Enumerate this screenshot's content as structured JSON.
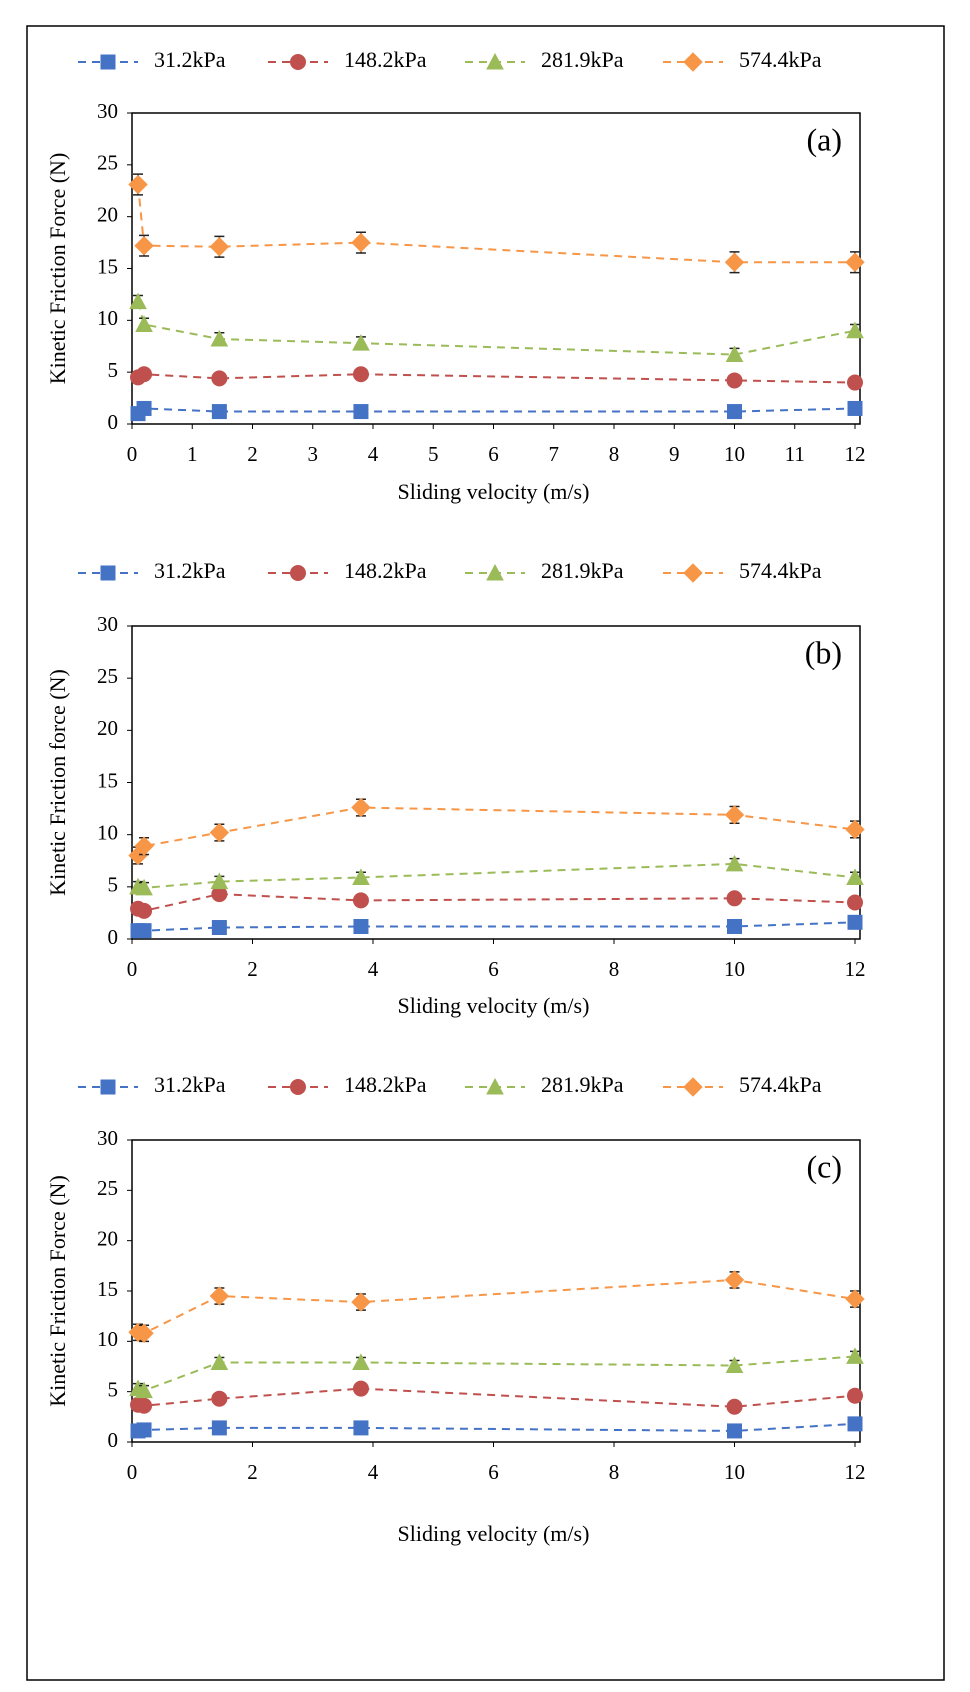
{
  "chart_data": [
    {
      "type": "line",
      "annotation": "(a)",
      "x_label": "Sliding velocity (m/s)",
      "y_label": "Kinetic Friction Force (N)",
      "x": [
        0.1,
        0.2,
        1.45,
        3.8,
        10,
        12
      ],
      "xlim": [
        0,
        12
      ],
      "xticks": [
        0,
        1,
        2,
        3,
        4,
        5,
        6,
        7,
        8,
        9,
        10,
        11,
        12
      ],
      "ylim": [
        0,
        30
      ],
      "yticks": [
        0,
        5,
        10,
        15,
        20,
        25,
        30
      ],
      "series": [
        {
          "name": "31.2kPa",
          "color": "#4472c4",
          "marker": "square",
          "values": [
            1.0,
            1.5,
            1.2,
            1.2,
            1.2,
            1.5
          ],
          "errors": [
            0.3,
            0.3,
            0.3,
            0.3,
            0.3,
            0.3
          ]
        },
        {
          "name": "148.2kPa",
          "color": "#c0504d",
          "marker": "circle",
          "values": [
            4.5,
            4.8,
            4.4,
            4.8,
            4.2,
            4.0
          ],
          "errors": [
            0.4,
            0.4,
            0.4,
            0.4,
            0.4,
            0.4
          ]
        },
        {
          "name": "281.9kPa",
          "color": "#9bbb59",
          "marker": "triangle",
          "values": [
            11.8,
            9.6,
            8.2,
            7.8,
            6.7,
            9.0
          ],
          "errors": [
            0.6,
            0.6,
            0.6,
            0.6,
            0.6,
            0.6
          ]
        },
        {
          "name": "574.4kPa",
          "color": "#f79646",
          "marker": "diamond",
          "values": [
            23.1,
            17.2,
            17.1,
            17.5,
            15.6,
            15.6
          ],
          "errors": [
            1.0,
            1.0,
            1.0,
            1.0,
            1.0,
            1.0
          ]
        }
      ]
    },
    {
      "type": "line",
      "annotation": "(b)",
      "x_label": "Sliding velocity (m/s)",
      "y_label": "Kinetic Friction force (N)",
      "x": [
        0.1,
        0.2,
        1.45,
        3.8,
        10,
        12
      ],
      "xlim": [
        0,
        12
      ],
      "xticks": [
        0,
        2,
        4,
        6,
        8,
        10,
        12
      ],
      "ylim": [
        0,
        30
      ],
      "yticks": [
        0,
        5,
        10,
        15,
        20,
        25,
        30
      ],
      "series": [
        {
          "name": "31.2kPa",
          "color": "#4472c4",
          "marker": "square",
          "values": [
            0.8,
            0.8,
            1.1,
            1.2,
            1.2,
            1.6
          ],
          "errors": [
            0.3,
            0.3,
            0.3,
            0.3,
            0.3,
            0.3
          ]
        },
        {
          "name": "148.2kPa",
          "color": "#c0504d",
          "marker": "circle",
          "values": [
            2.9,
            2.7,
            4.3,
            3.7,
            3.9,
            3.5
          ],
          "errors": [
            0.4,
            0.4,
            0.4,
            0.4,
            0.4,
            0.4
          ]
        },
        {
          "name": "281.9kPa",
          "color": "#9bbb59",
          "marker": "triangle",
          "values": [
            5.0,
            4.9,
            5.5,
            5.9,
            7.2,
            5.9
          ],
          "errors": [
            0.5,
            0.5,
            0.5,
            0.5,
            0.5,
            0.5
          ]
        },
        {
          "name": "574.4kPa",
          "color": "#f79646",
          "marker": "diamond",
          "values": [
            8.0,
            8.9,
            10.2,
            12.6,
            11.9,
            10.5
          ],
          "errors": [
            0.8,
            0.8,
            0.8,
            0.8,
            0.8,
            0.8
          ]
        }
      ]
    },
    {
      "type": "line",
      "annotation": "(c)",
      "x_label": "Sliding velocity (m/s)",
      "y_label": "Kinetic Friction Force (N)",
      "x": [
        0.1,
        0.2,
        1.45,
        3.8,
        10,
        12
      ],
      "xlim": [
        0,
        12
      ],
      "xticks": [
        0,
        2,
        4,
        6,
        8,
        10,
        12
      ],
      "ylim": [
        0,
        30
      ],
      "yticks": [
        0,
        5,
        10,
        15,
        20,
        25,
        30
      ],
      "series": [
        {
          "name": "31.2kPa",
          "color": "#4472c4",
          "marker": "square",
          "values": [
            1.1,
            1.2,
            1.4,
            1.4,
            1.1,
            1.8
          ],
          "errors": [
            0.3,
            0.3,
            0.3,
            0.3,
            0.3,
            0.3
          ]
        },
        {
          "name": "148.2kPa",
          "color": "#c0504d",
          "marker": "circle",
          "values": [
            3.7,
            3.6,
            4.3,
            5.3,
            3.5,
            4.6
          ],
          "errors": [
            0.4,
            0.4,
            0.4,
            0.4,
            0.4,
            0.4
          ]
        },
        {
          "name": "281.9kPa",
          "color": "#9bbb59",
          "marker": "triangle",
          "values": [
            5.3,
            5.1,
            7.9,
            7.9,
            7.6,
            8.5
          ],
          "errors": [
            0.5,
            0.5,
            0.5,
            0.5,
            0.5,
            0.5
          ]
        },
        {
          "name": "574.4kPa",
          "color": "#f79646",
          "marker": "diamond",
          "values": [
            10.9,
            10.8,
            14.5,
            13.9,
            16.1,
            14.2
          ],
          "errors": [
            0.8,
            0.8,
            0.8,
            0.8,
            0.8,
            0.8
          ]
        }
      ]
    }
  ]
}
